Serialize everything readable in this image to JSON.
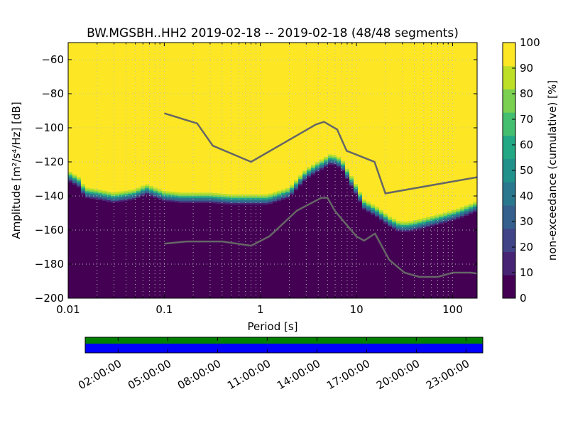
{
  "chart_data": [
    {
      "type": "heatmap",
      "title": "BW.MGSBH..HH2   2019-02-18 -- 2019-02-18  (48/48 segments)",
      "xlabel": "Period [s]",
      "ylabel": "Amplitude [m²/s⁴/Hz] [dB]",
      "xscale": "log",
      "xlim": [
        0.01,
        180
      ],
      "ylim": [
        -200,
        -50
      ],
      "x_ticks": [
        0.01,
        0.1,
        1,
        10,
        100
      ],
      "x_tick_labels": [
        "0.01",
        "0.1",
        "1",
        "10",
        "100"
      ],
      "y_ticks": [
        -200,
        -180,
        -160,
        -140,
        -120,
        -100,
        -80,
        -60
      ],
      "y_tick_labels": [
        "−200",
        "−180",
        "−160",
        "−140",
        "−120",
        "−100",
        "−80",
        "−60"
      ],
      "grid": true,
      "psd_boundary": {
        "description": "approximate amplitude where cumulative non-exceedance transitions from 0% to 100%",
        "period": [
          0.01,
          0.013,
          0.015,
          0.02,
          0.03,
          0.05,
          0.065,
          0.08,
          0.1,
          0.15,
          0.3,
          0.5,
          0.8,
          1.2,
          2,
          3,
          4.5,
          5.5,
          7,
          9,
          12,
          17,
          22,
          28,
          35,
          50,
          80,
          120,
          180
        ],
        "db": [
          -128,
          -132,
          -138,
          -139,
          -141,
          -139,
          -136,
          -138,
          -140,
          -141,
          -141,
          -142,
          -142,
          -142,
          -138,
          -127,
          -121,
          -118,
          -121,
          -132,
          -145,
          -150,
          -155,
          -158,
          -158,
          -156,
          -153,
          -150,
          -146
        ],
        "transition_width_db": 6
      },
      "noise_models": [
        {
          "name": "NHNM",
          "period": [
            0.1,
            0.22,
            0.32,
            0.8,
            3.8,
            4.6,
            6.3,
            7.9,
            15.4,
            20,
            180
          ],
          "db": [
            -91.5,
            -97.4,
            -110.5,
            -120,
            -98,
            -96.5,
            -101,
            -113.5,
            -120,
            -138.5,
            -129
          ]
        },
        {
          "name": "NLNM",
          "period": [
            0.1,
            0.17,
            0.4,
            0.8,
            1.24,
            2.4,
            4.3,
            5,
            6,
            10,
            12,
            15.6,
            21.9,
            31.6,
            45,
            70,
            101,
            154,
            180
          ],
          "db": [
            -168,
            -166.7,
            -166.7,
            -169.2,
            -163.7,
            -148.6,
            -141.1,
            -141.1,
            -149,
            -163.8,
            -166.2,
            -162.1,
            -177.5,
            -185,
            -187.5,
            -187.5,
            -185,
            -185,
            -185.5
          ]
        }
      ],
      "colorbar": {
        "label": "non-exceedance (cumulative) [%]",
        "min": 0,
        "max": 100,
        "ticks": [
          0,
          10,
          20,
          30,
          40,
          50,
          60,
          70,
          80,
          90,
          100
        ],
        "tick_labels": [
          "0",
          "10",
          "20",
          "30",
          "40",
          "50",
          "60",
          "70",
          "80",
          "90",
          "100"
        ],
        "colors": [
          "#440154",
          "#482475",
          "#414487",
          "#355f8d",
          "#2a788e",
          "#21918c",
          "#22a884",
          "#44bf70",
          "#7ad151",
          "#bddf26",
          "#fde725"
        ]
      },
      "colors": {
        "noise_model_line": "#666666",
        "frame": "#000000",
        "grid": "#bbbbbb"
      }
    },
    {
      "type": "timeline",
      "description": "data coverage bar",
      "tick_labels": [
        "02:00:00",
        "05:00:00",
        "08:00:00",
        "11:00:00",
        "14:00:00",
        "17:00:00",
        "20:00:00",
        "23:00:00"
      ],
      "colors": {
        "coverage": "#008000",
        "segments": "#0000ff"
      }
    }
  ]
}
